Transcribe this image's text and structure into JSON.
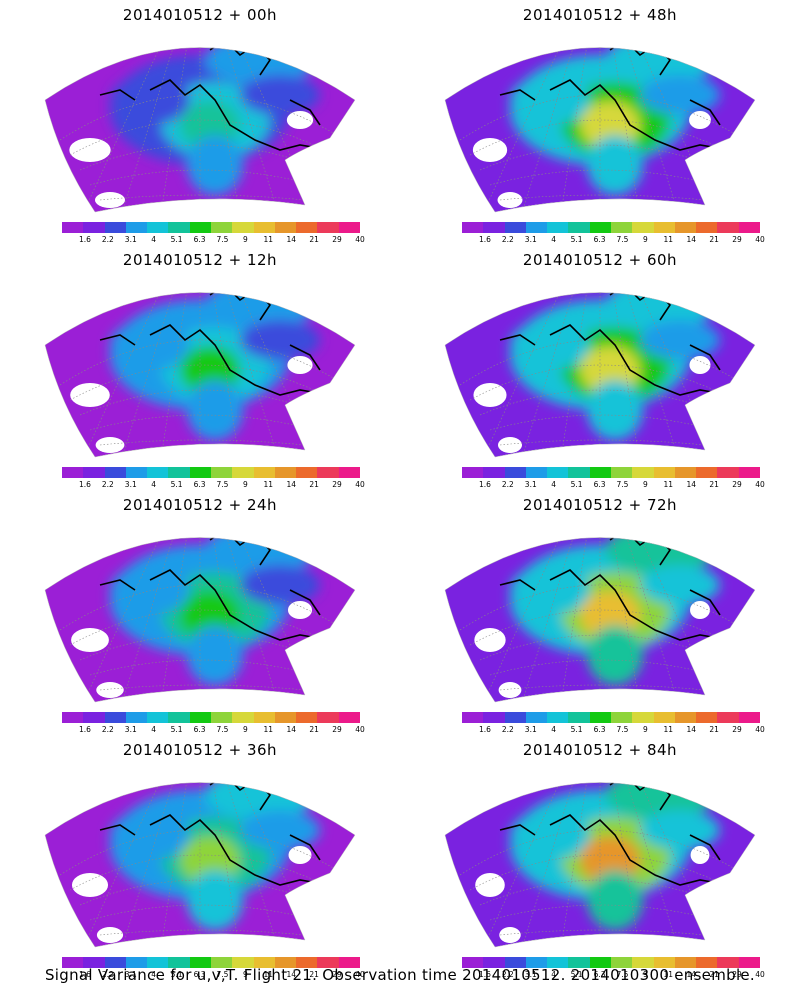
{
  "colorscale": {
    "colors": [
      "#9b1fd6",
      "#7a22e0",
      "#3a4bdc",
      "#1e9ce8",
      "#13c3d8",
      "#12c39a",
      "#12c912",
      "#8ed43a",
      "#d6d83a",
      "#e8be30",
      "#e6962a",
      "#ec6a2c",
      "#ec3a5a",
      "#ec1a8a"
    ],
    "labels": [
      "1.6",
      "2.2",
      "3.1",
      "4",
      "5.1",
      "6.3",
      "7.5",
      "9",
      "11",
      "14",
      "21",
      "29",
      "40"
    ]
  },
  "panels": [
    {
      "title": "2014010512 + 00h"
    },
    {
      "title": "2014010512 + 48h"
    },
    {
      "title": "2014010512 + 12h"
    },
    {
      "title": "2014010512 + 60h"
    },
    {
      "title": "2014010512 + 24h"
    },
    {
      "title": "2014010512 + 72h"
    },
    {
      "title": "2014010512 + 36h"
    },
    {
      "title": "2014010512 + 84h"
    }
  ],
  "caption": "Signal Variance for u,v,T. Flight 21. Observation time 2014010512. 2014010300 ensemble."
}
